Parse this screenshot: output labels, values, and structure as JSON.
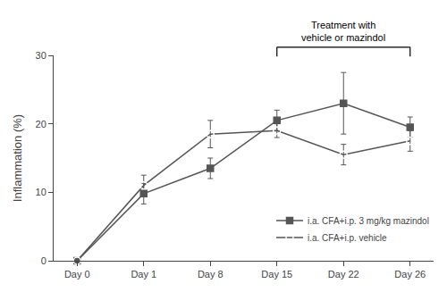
{
  "chart_data": {
    "type": "line",
    "categories": [
      "Day 0",
      "Day 1",
      "Day 8",
      "Day 15",
      "Day 22",
      "Day 26"
    ],
    "series": [
      {
        "name": "i.a. CFA+i.p. 3 mg/kg mazindol",
        "color": "#555555",
        "marker": "square",
        "values": [
          0.0,
          9.8,
          13.5,
          20.5,
          23.0,
          19.5
        ],
        "errors": [
          0.0,
          1.5,
          1.5,
          1.5,
          4.5,
          1.5
        ]
      },
      {
        "name": "i.a. CFA+i.p. vehicle",
        "color": "#555555",
        "marker": "circle-open",
        "values": [
          0.0,
          11.0,
          18.5,
          19.0,
          15.5,
          17.5
        ],
        "errors": [
          0.0,
          1.5,
          2.0,
          1.0,
          1.5,
          1.5
        ]
      }
    ],
    "y_label": "Inflammation (%)",
    "ylim": [
      0,
      30
    ],
    "yticks": [
      0,
      10,
      20,
      30
    ],
    "annotations": [
      {
        "text": "Treatment with\nvehicle or mazindol",
        "x": [
          "Day 15",
          "Day 26"
        ]
      }
    ],
    "legend": "lower right",
    "grid": false
  }
}
